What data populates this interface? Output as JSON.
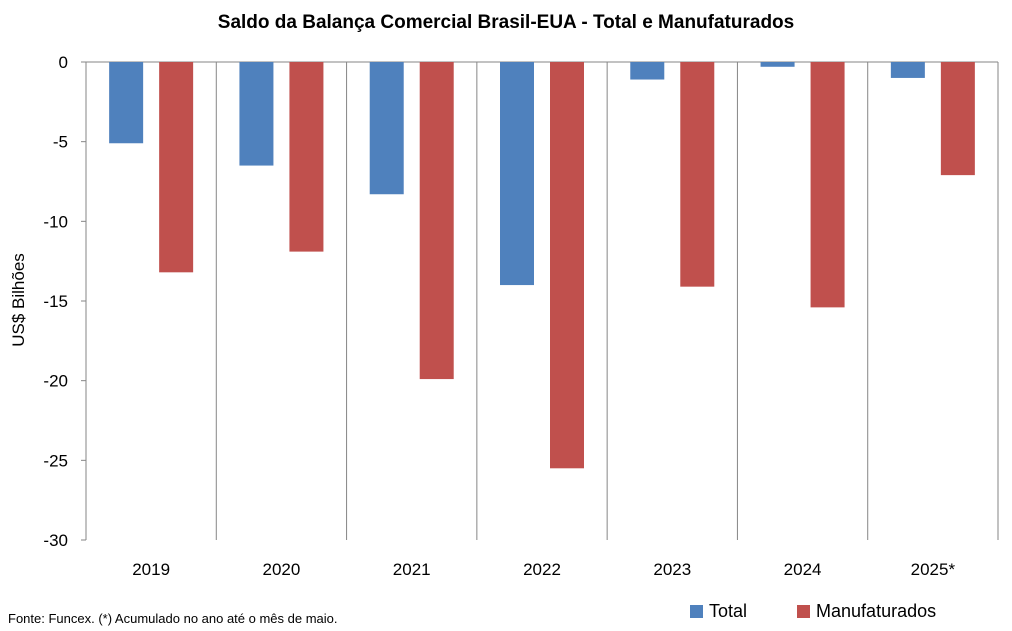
{
  "chart_data": {
    "type": "bar",
    "title": "Saldo da Balança Comercial Brasil-EUA - Total e Manufaturados",
    "ylabel": "US$ Bilhões",
    "xlabel": "",
    "categories": [
      "2019",
      "2020",
      "2021",
      "2022",
      "2023",
      "2024",
      "2025*"
    ],
    "series": [
      {
        "name": "Total",
        "color": "#4f81bd",
        "values": [
          -5.1,
          -6.5,
          -8.3,
          -14.0,
          -1.1,
          -0.3,
          -1.0
        ]
      },
      {
        "name": "Manufaturados",
        "color": "#c0504d",
        "values": [
          -13.2,
          -11.9,
          -19.9,
          -25.5,
          -14.1,
          -15.4,
          -7.1
        ]
      }
    ],
    "ylim": [
      -30,
      0
    ],
    "yticks": [
      "0",
      "-5",
      "-10",
      "-15",
      "-20",
      "-25",
      "-30"
    ],
    "ytick_values": [
      0,
      -5,
      -10,
      -15,
      -20,
      -25,
      -30
    ],
    "grid": false,
    "legend": "bottom-right"
  },
  "source_note": "Fonte: Funcex. (*) Acumulado  no ano até o mês de maio."
}
